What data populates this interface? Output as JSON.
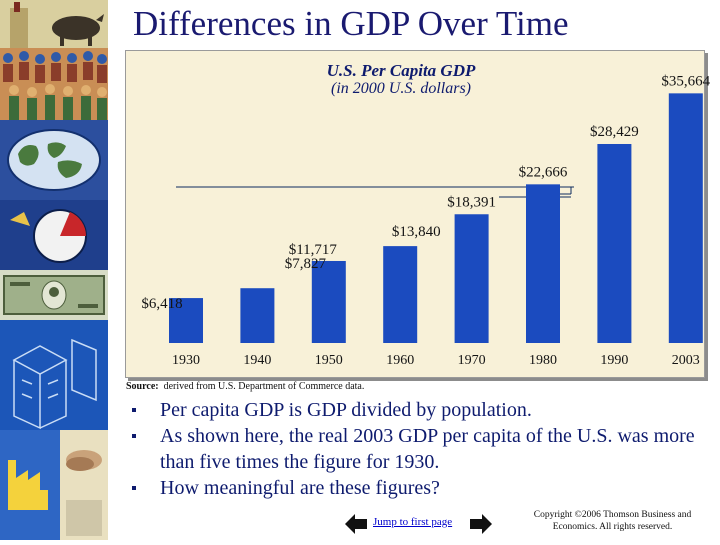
{
  "title": "Differences in GDP Over Time",
  "chart_data": {
    "type": "bar",
    "title": "U.S. Per Capita GDP",
    "subtitle": "(in 2000 U.S. dollars)",
    "categories": [
      "1930",
      "1940",
      "1950",
      "1960",
      "1970",
      "1980",
      "1990",
      "2003"
    ],
    "values": [
      6418,
      7827,
      11717,
      13840,
      18391,
      22666,
      28429,
      35664
    ],
    "value_labels": [
      "$6,418",
      "$7,827",
      "$11,717",
      "$13,840",
      "$18,391",
      "$22,666",
      "$28,429",
      "$35,664"
    ],
    "xlabel": "",
    "ylabel": "",
    "ylim": [
      0,
      38000
    ],
    "grid": false
  },
  "source": {
    "label": "Source:",
    "text": "derived from U.S. Department of Commerce data."
  },
  "bullets": [
    "Per capita GDP is GDP divided by population.",
    "As shown here, the real 2003 GDP per capita of the U.S. was more than five times the figure for 1930.",
    "How meaningful are these figures?"
  ],
  "nav": {
    "jump_label": "Jump to first page"
  },
  "copyright": "Copyright ©2006 Thomson Business and Economics. All rights reserved.",
  "colors": {
    "bar": "#1b4bbf",
    "panel": "#f8f1d8",
    "text": "#0e1b6e"
  }
}
